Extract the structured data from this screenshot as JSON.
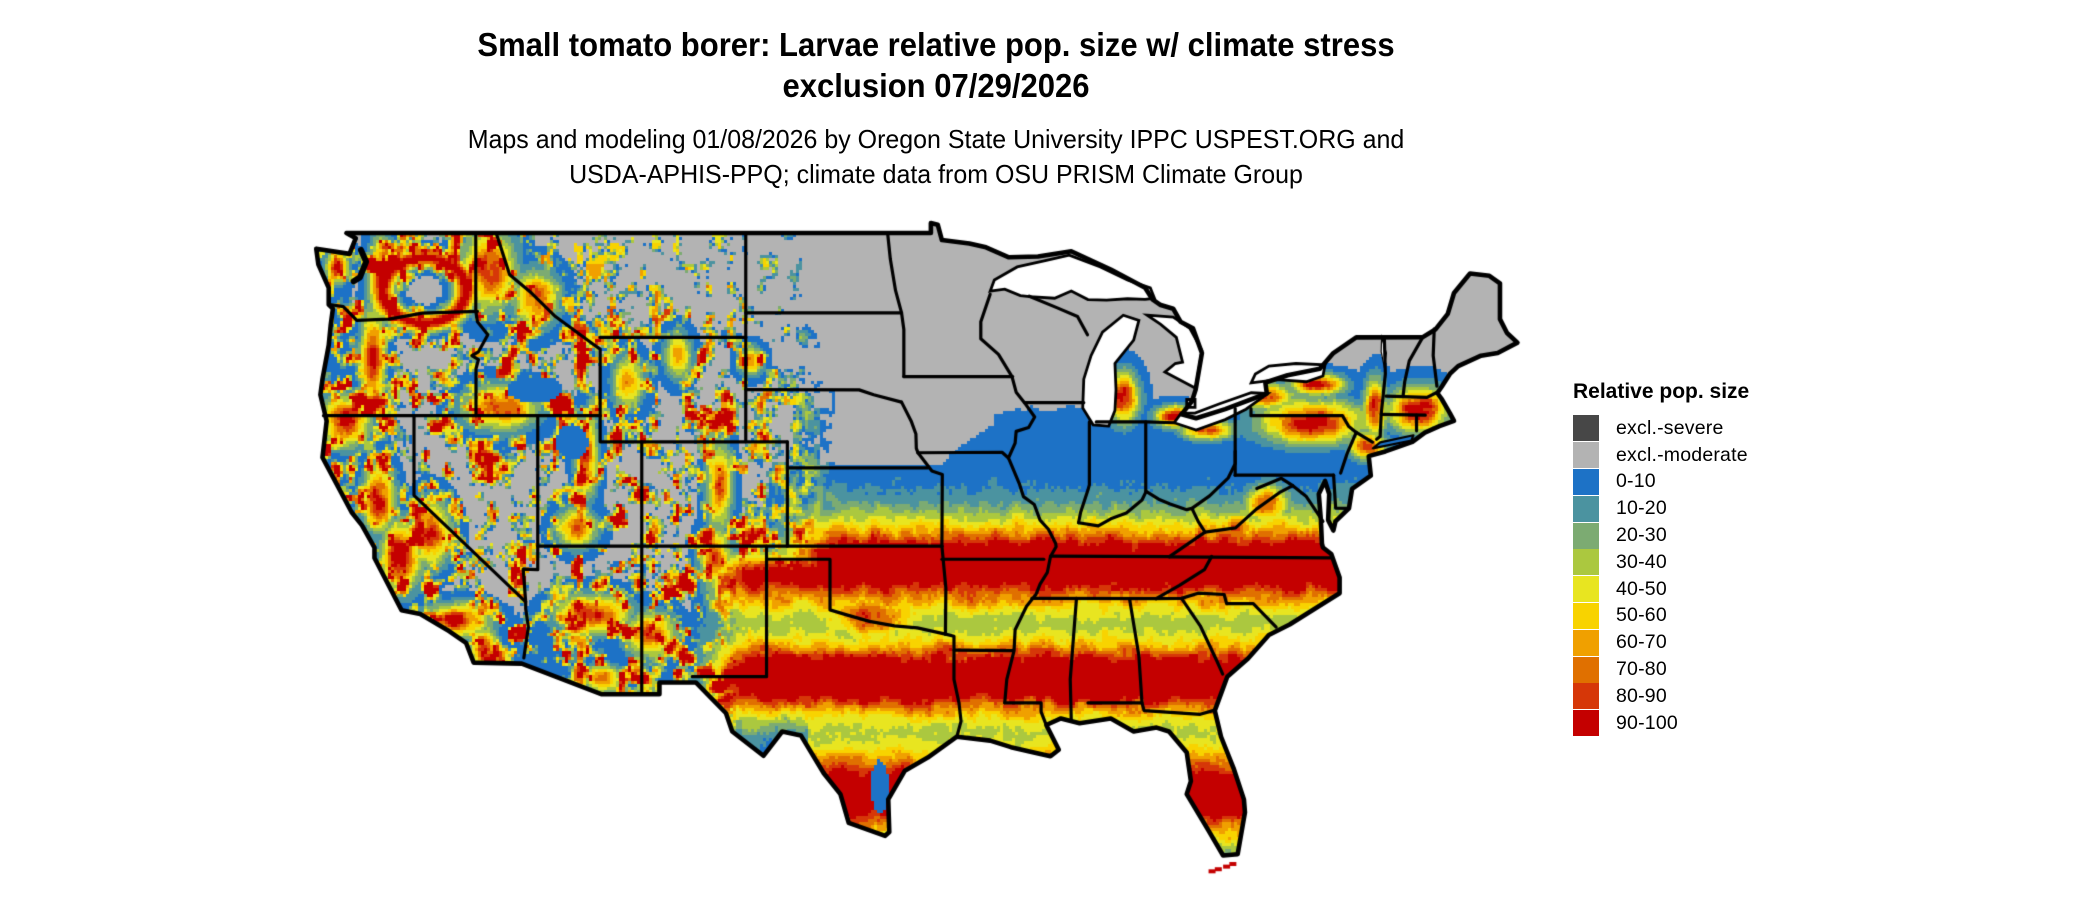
{
  "header": {
    "title_line1": "Small tomato borer: Larvae relative pop. size w/ climate stress",
    "title_line2": "exclusion 07/29/2026",
    "subtitle_line1": "Maps and modeling 01/08/2026 by Oregon State University IPPC USPEST.ORG and",
    "subtitle_line2": "USDA-APHIS-PPQ; climate data from OSU PRISM Climate Group"
  },
  "legend": {
    "title": "Relative pop. size",
    "items": [
      {
        "label": "excl.-severe",
        "color": "#474747"
      },
      {
        "label": "excl.-moderate",
        "color": "#b3b3b3"
      },
      {
        "label": "0-10",
        "color": "#1d72c6"
      },
      {
        "label": "10-20",
        "color": "#4b93a0"
      },
      {
        "label": "20-30",
        "color": "#7cab72"
      },
      {
        "label": "30-40",
        "color": "#abc83f"
      },
      {
        "label": "40-50",
        "color": "#e8e520"
      },
      {
        "label": "50-60",
        "color": "#f8d300"
      },
      {
        "label": "60-70",
        "color": "#f0a000"
      },
      {
        "label": "70-80",
        "color": "#e07000"
      },
      {
        "label": "80-90",
        "color": "#d63708"
      },
      {
        "label": "90-100",
        "color": "#c40000"
      }
    ]
  },
  "map": {
    "region_border_color": "#000000",
    "water_color": "#ffffff",
    "background_color": "#ffffff"
  }
}
